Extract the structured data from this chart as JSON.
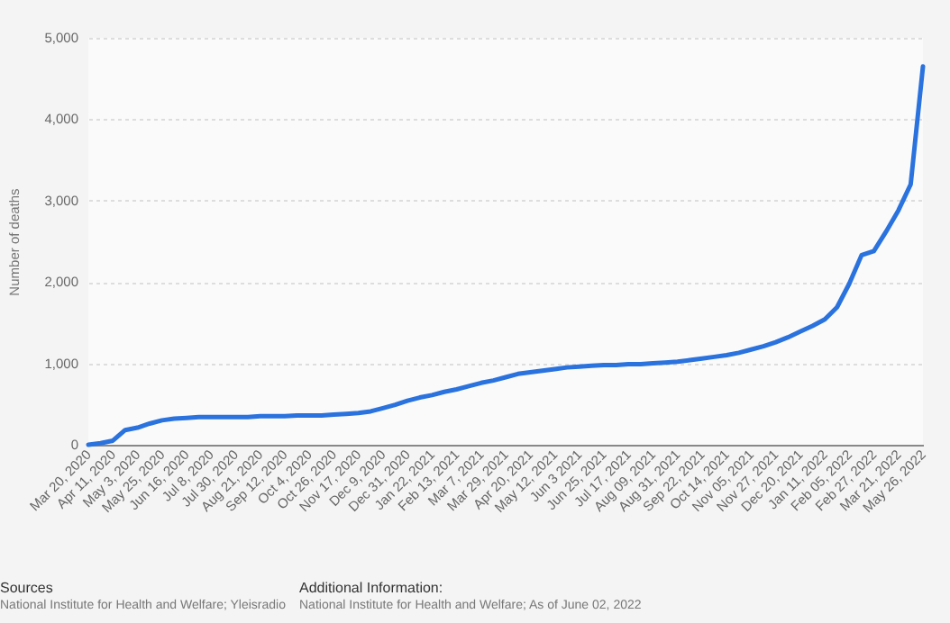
{
  "chart_data": {
    "type": "line",
    "ylabel": "Number of deaths",
    "categories": [
      "Mar 20, 2020",
      null,
      "Apr 11, 2020",
      null,
      "May 3, 2020",
      null,
      "May 25, 2020",
      null,
      "Jun 16, 2020",
      null,
      "Jul 8, 2020",
      null,
      "Jul 30, 2020",
      null,
      "Aug 21, 2020",
      null,
      "Sep 12, 2020",
      null,
      "Oct 4, 2020",
      null,
      "Oct 26, 2020",
      null,
      "Nov 17, 2020",
      null,
      "Dec 9, 2020",
      null,
      "Dec 31, 2020",
      null,
      "Jan 22, 2021",
      null,
      "Feb 13, 2021",
      null,
      "Mar 7, 2021",
      null,
      "Mar 29, 2021",
      null,
      "Apr 20, 2021",
      null,
      "May 12, 2021",
      null,
      "Jun 3 2021",
      null,
      "Jun 25, 2021",
      null,
      "Jul 17, 2021",
      null,
      "Aug 09, 2021",
      null,
      "Aug 31, 2021",
      null,
      "Sep 22, 2021",
      null,
      "Oct 14, 2021",
      null,
      "Nov 05, 2021",
      null,
      "Nov 27, 2021",
      null,
      "Dec 20, 2021",
      null,
      "Jan 11, 2022",
      null,
      "Feb 05, 2022",
      null,
      "Feb 27, 2022",
      null,
      "Mar 21, 2022",
      null,
      "May 26, 2022"
    ],
    "series": [
      {
        "color": "#2a72de",
        "values": [
          0,
          20,
          50,
          180,
          210,
          260,
          300,
          320,
          330,
          340,
          340,
          340,
          340,
          340,
          350,
          350,
          350,
          360,
          360,
          360,
          370,
          380,
          390,
          410,
          450,
          490,
          540,
          580,
          610,
          650,
          680,
          720,
          760,
          790,
          830,
          870,
          890,
          910,
          930,
          950,
          960,
          970,
          980,
          980,
          990,
          990,
          1000,
          1010,
          1020,
          1040,
          1060,
          1080,
          1100,
          1130,
          1170,
          1210,
          1260,
          1320,
          1390,
          1460,
          1540,
          1690,
          1980,
          2330,
          2380,
          2620,
          2880,
          3200,
          4650
        ]
      }
    ],
    "ylim": [
      0,
      5000
    ],
    "yticks": [
      0,
      {
        "value": 1000,
        "label": "1,000"
      },
      {
        "value": 2000,
        "label": "2,000"
      },
      {
        "value": 3000,
        "label": "3,000"
      },
      {
        "value": 4000,
        "label": "4,000"
      },
      {
        "value": 5000,
        "label": "5,000"
      }
    ],
    "grid": "y",
    "annotations": [
      "Sources",
      "National Institute for Health and Welfare; Yleisradio",
      "Additional Information:",
      "National Institute for Health and Welfare; As of June 02, 2022"
    ]
  }
}
